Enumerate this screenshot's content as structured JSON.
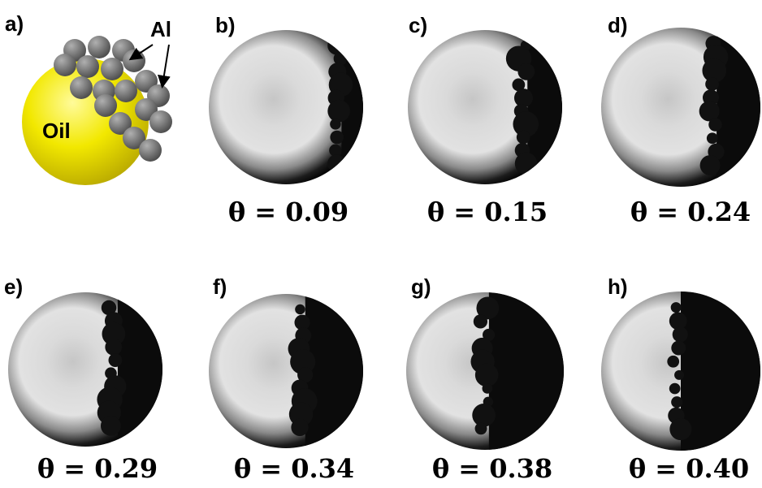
{
  "figure": {
    "panel_a": {
      "label": "a)",
      "oil": "Oil",
      "al": "Al"
    },
    "panels": [
      {
        "label": "b)",
        "caption": "θ = 0.09"
      },
      {
        "label": "c)",
        "caption": "θ = 0.15"
      },
      {
        "label": "d)",
        "caption": "θ = 0.24"
      },
      {
        "label": "e)",
        "caption": "θ = 0.29"
      },
      {
        "label": "f)",
        "caption": "θ = 0.34"
      },
      {
        "label": "g)",
        "caption": "θ = 0.38"
      },
      {
        "label": "h)",
        "caption": "θ = 0.40"
      }
    ]
  }
}
